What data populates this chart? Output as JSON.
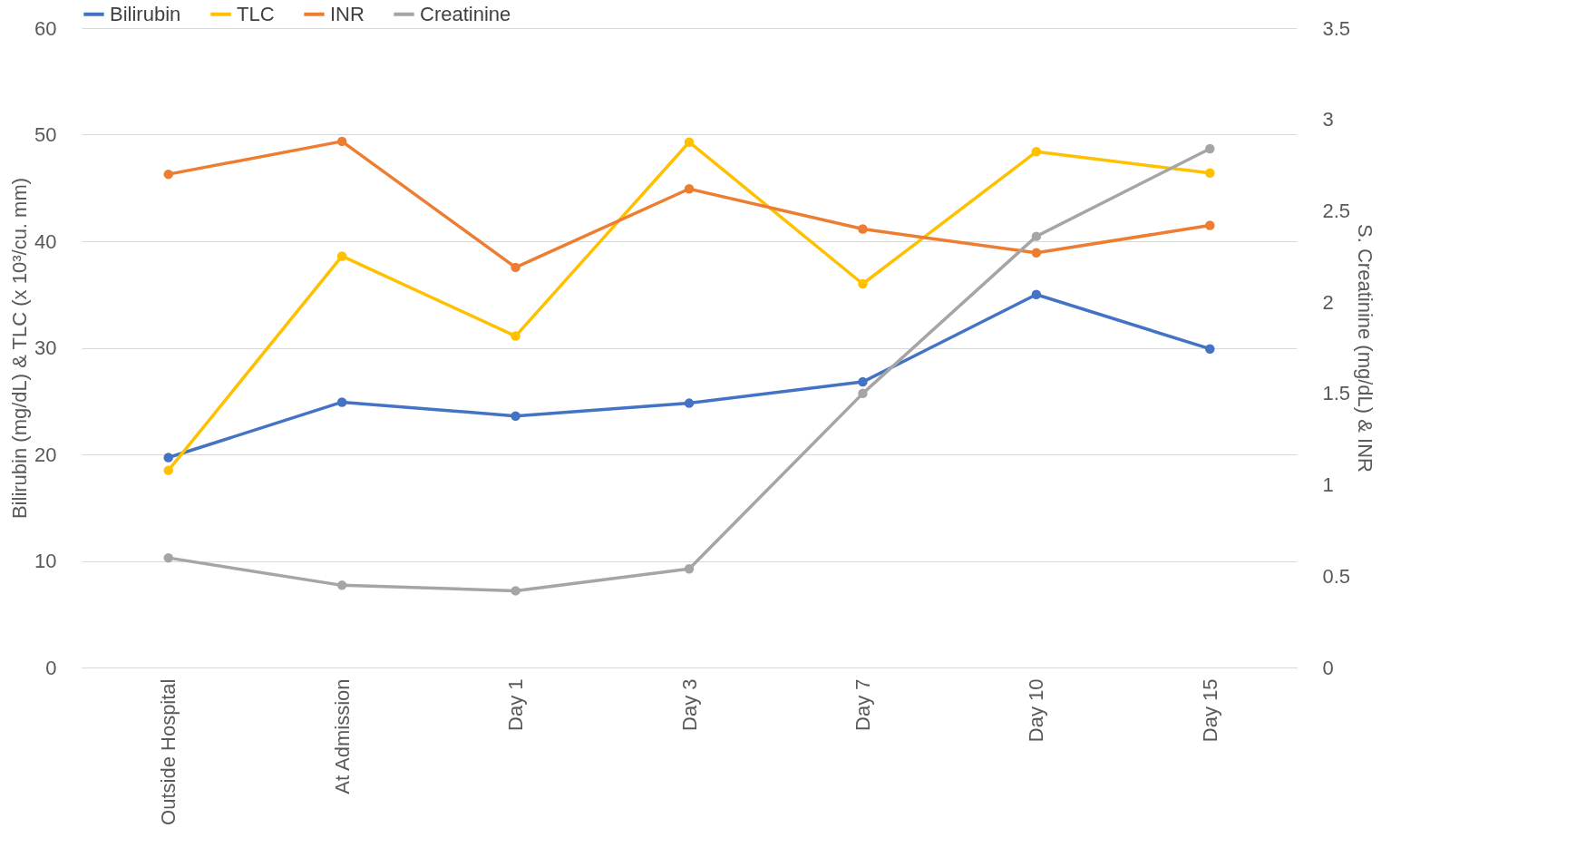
{
  "chart_data": {
    "type": "line",
    "categories": [
      "Outside Hospital",
      "At Admission",
      "Day 1",
      "Day 3",
      "Day 7",
      "Day 10",
      "Day 15"
    ],
    "ylabel": "Bilirubin (mg/dL) & TLC (x 10³/cu. mm)",
    "y2label": "S. Creatinine (mg/dL) & INR",
    "ylim": [
      0,
      60
    ],
    "yticks": [
      0,
      10,
      20,
      30,
      40,
      50,
      60
    ],
    "y2lim": [
      0,
      3.5
    ],
    "y2ticks": [
      0,
      0.5,
      1,
      1.5,
      2,
      2.5,
      3,
      3.5
    ],
    "grid": "y",
    "legend": "top",
    "marker": "circle",
    "line_style": "solid",
    "series": [
      {
        "name": "Bilirubin",
        "color": "#4472c4",
        "values": [
          19.7,
          24.9,
          23.6,
          24.8,
          26.8,
          35.0,
          29.9
        ]
      },
      {
        "name": "TLC",
        "color": "#ffc000",
        "values": [
          18.5,
          38.6,
          31.1,
          49.3,
          36.0,
          48.4,
          46.4
        ]
      },
      {
        "name": "INR",
        "color": "#ed7d31",
        "axis": "y2",
        "values": [
          2.7,
          2.88,
          2.19,
          2.62,
          2.4,
          2.27,
          2.42
        ]
      },
      {
        "name": "Creatinine",
        "color": "#a5a5a5",
        "axis": "y2",
        "values": [
          0.6,
          0.45,
          0.42,
          0.54,
          1.5,
          2.36,
          2.84
        ]
      }
    ]
  }
}
